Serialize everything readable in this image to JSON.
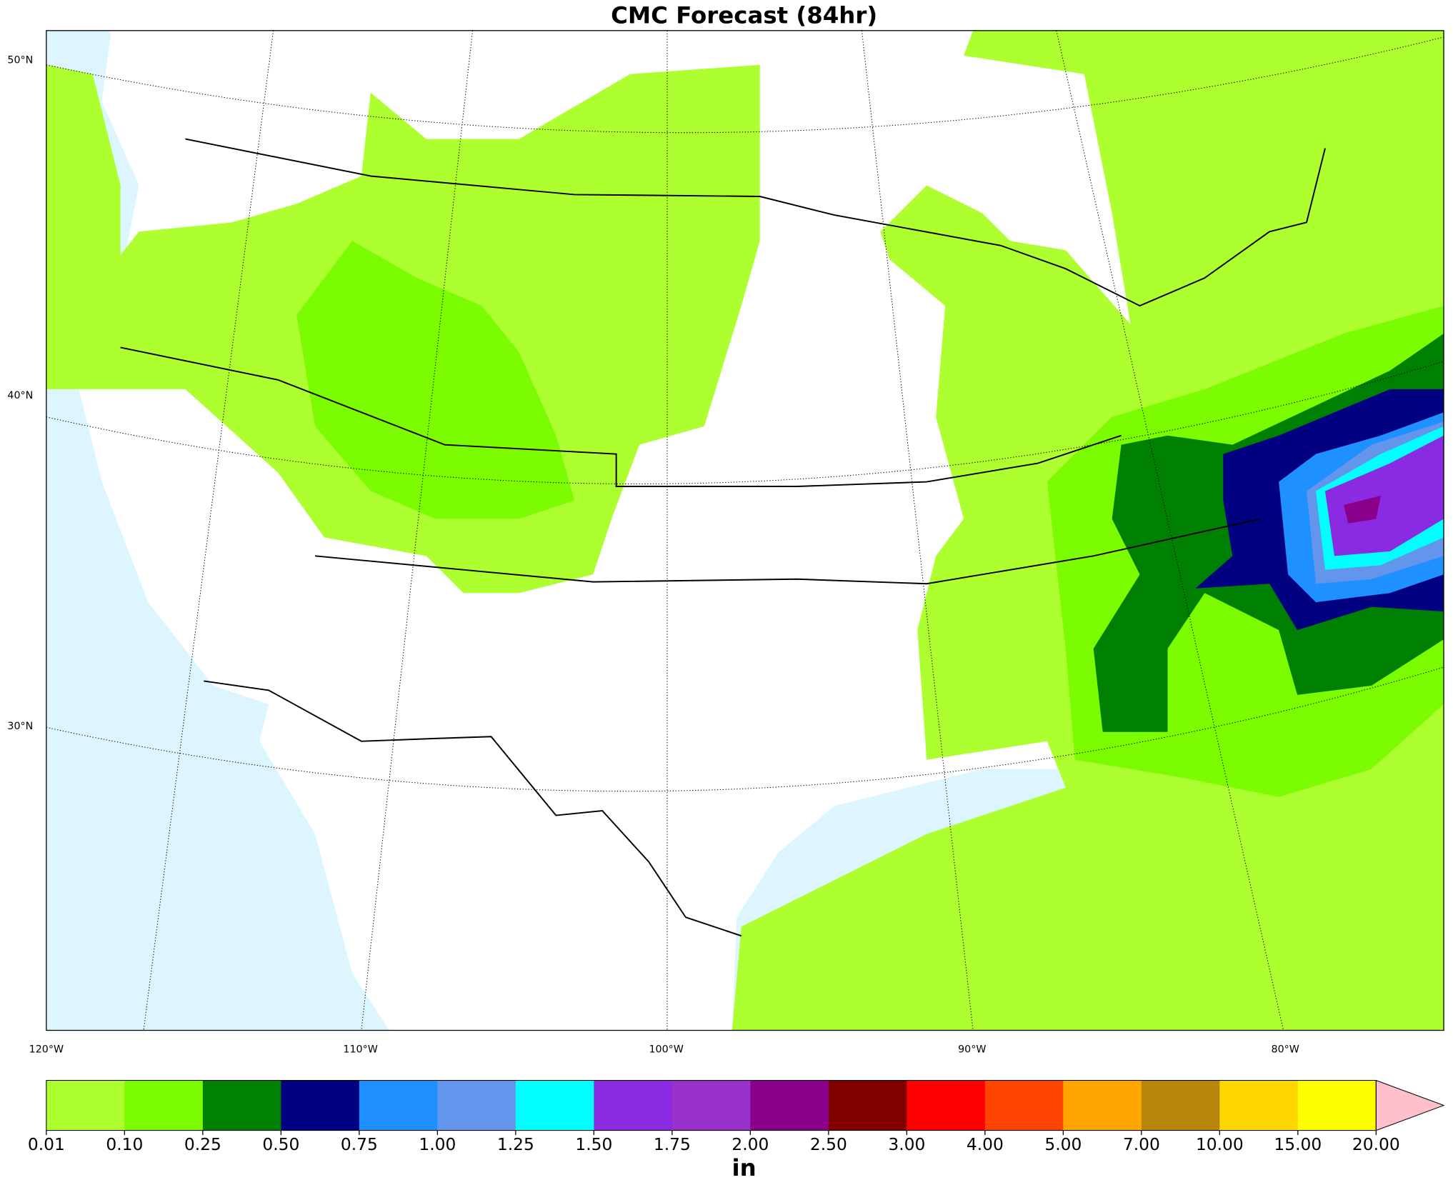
{
  "title": "CMC Forecast (84hr)",
  "map": {
    "lat_labels": [
      "50°N",
      "40°N",
      "30°N"
    ],
    "lon_labels": [
      "120°W",
      "110°W",
      "100°W",
      "90°W",
      "80°W"
    ]
  },
  "colorbar": {
    "levels": [
      {
        "value": 0.01,
        "label": "0.01"
      },
      {
        "value": 0.1,
        "label": "0.10"
      },
      {
        "value": 0.25,
        "label": "0.25"
      },
      {
        "value": 0.5,
        "label": "0.50"
      },
      {
        "value": 0.75,
        "label": "0.75"
      },
      {
        "value": 1,
        "label": "1.00"
      },
      {
        "value": 1.25,
        "label": "1.25"
      },
      {
        "value": 1.5,
        "label": "1.50"
      },
      {
        "value": 1.75,
        "label": "1.75"
      },
      {
        "value": 2,
        "label": "2.00"
      },
      {
        "value": 2.5,
        "label": "2.50"
      },
      {
        "value": 3,
        "label": "3.00"
      },
      {
        "value": 4,
        "label": "4.00"
      },
      {
        "value": 5,
        "label": "5.00"
      },
      {
        "value": 7,
        "label": "7.00"
      },
      {
        "value": 10,
        "label": "10.00"
      },
      {
        "value": 15,
        "label": "15.00"
      },
      {
        "value": 20,
        "label": "20.00"
      }
    ],
    "colors": [
      "#adff2f",
      "#7cfc00",
      "#008000",
      "#000080",
      "#1e90ff",
      "#6495ed",
      "#00ffff",
      "#8a2be2",
      "#9932cc",
      "#8b008b",
      "#800000",
      "#ff0000",
      "#ff4500",
      "#ffa500",
      "#b8860b",
      "#ffd700",
      "#ffff00"
    ],
    "extend_color": "#ffc0cb",
    "unit": "in"
  }
}
